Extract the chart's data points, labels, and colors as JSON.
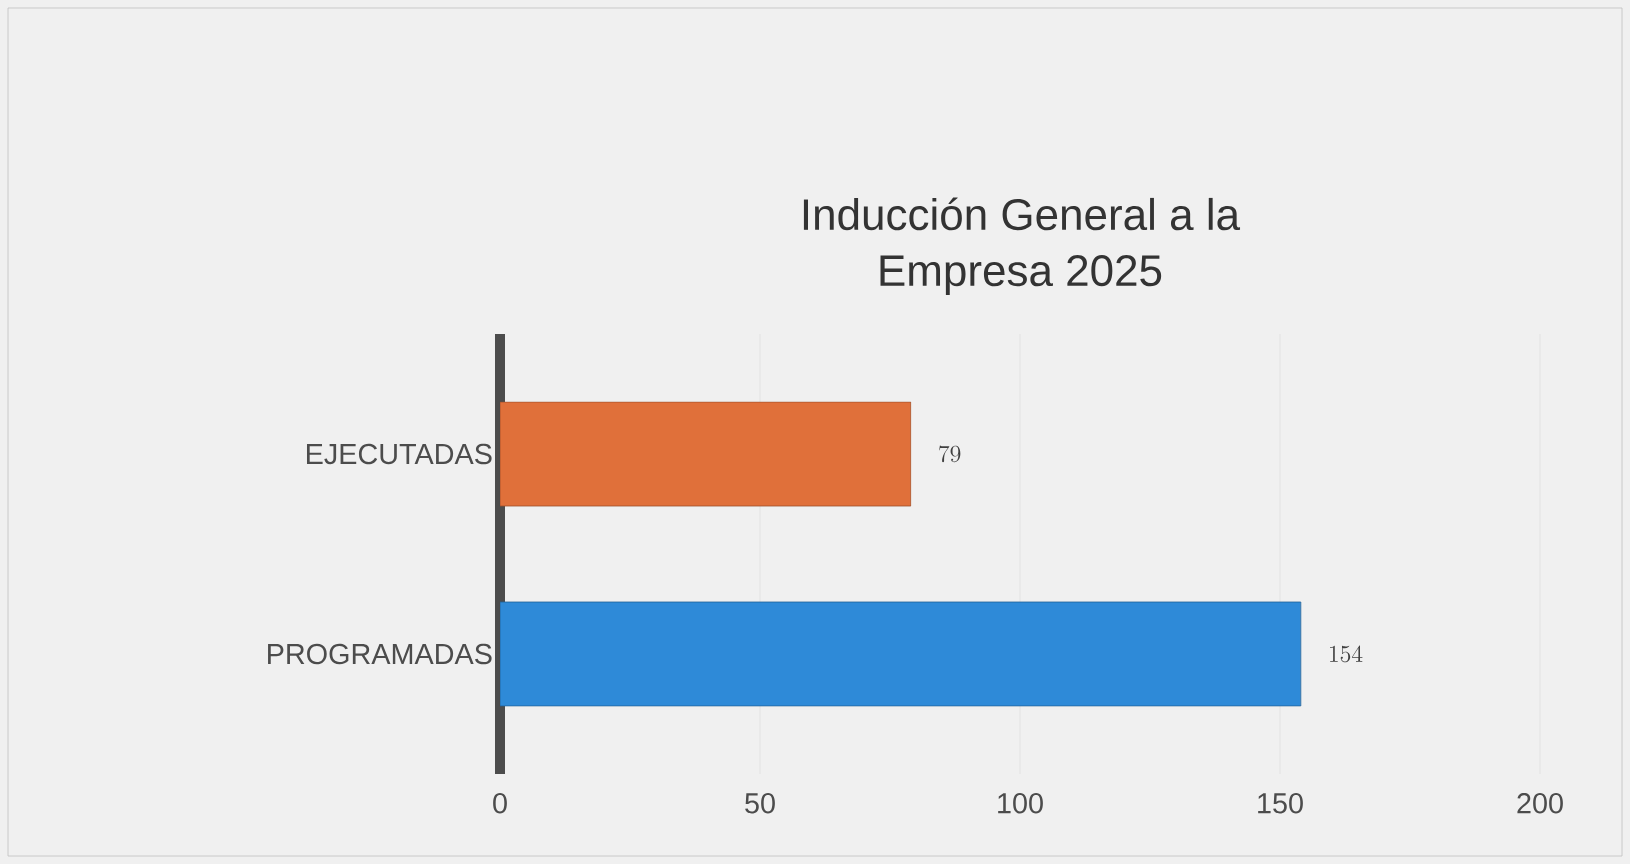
{
  "chart_data": {
    "type": "bar",
    "orientation": "horizontal",
    "title": "Inducción General a la Empresa 2025",
    "categories": [
      "EJECUTADAS",
      "PROGRAMADAS"
    ],
    "values": [
      79,
      154
    ],
    "colors": [
      "#e0703a",
      "#2e8ad8"
    ],
    "xlim": [
      0,
      200
    ],
    "xticks": [
      0,
      50,
      100,
      150,
      200
    ],
    "grid": "x",
    "data_labels": true
  }
}
